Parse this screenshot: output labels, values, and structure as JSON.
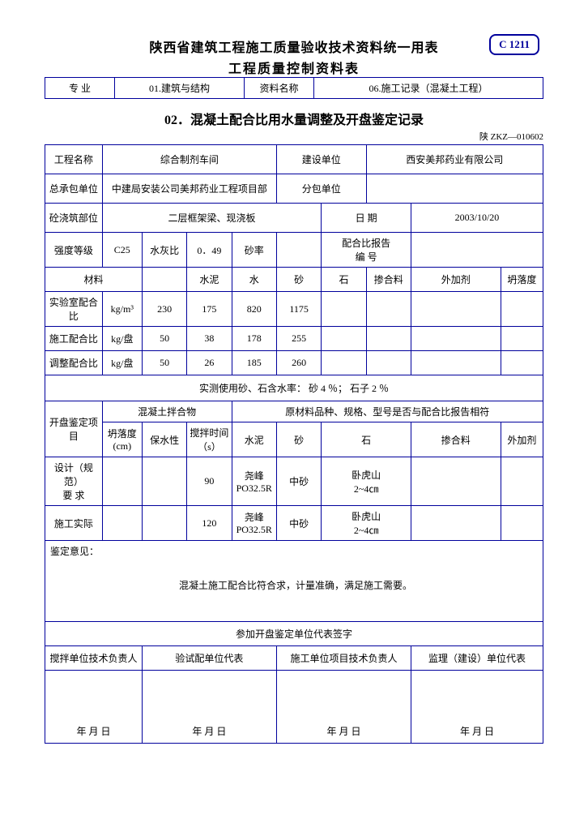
{
  "badge": "C 1211",
  "title1": "陕西省建筑工程施工质量验收技术资料统一用表",
  "title2": "工程质量控制资料表",
  "subtitle": "02．混凝土配合比用水量调整及开盘鉴定记录",
  "form_code": "陕 ZKZ—010602",
  "hdr": {
    "c1": "专    业",
    "v1": "01.建筑与结构",
    "c2": "资料名称",
    "v2": "06.施工记录（混凝土工程）"
  },
  "r1": {
    "c1": "工程名称",
    "v1": "综合制剂车间",
    "c2": "建设单位",
    "v2": "西安美邦药业有限公司"
  },
  "r2": {
    "c1": "总承包单位",
    "v1": "中建局安装公司美邦药业工程项目部",
    "c2": "分包单位",
    "v2": ""
  },
  "r3": {
    "c1": "砼浇筑部位",
    "v1": "二层框架梁、现浇板",
    "c2": "日    期",
    "v2": "2003/10/20"
  },
  "r4": {
    "c1": "强度等级",
    "v1": "C25",
    "c2": "水灰比",
    "v2": "0．49",
    "c3": "砂率",
    "v3": "",
    "c4": "配合比报告\n编    号",
    "v4": ""
  },
  "mat": {
    "head": [
      "材料",
      "",
      "水泥",
      "水",
      "砂",
      "石",
      "掺合料",
      "外加剂",
      "坍落度"
    ],
    "r1": [
      "实验室配合比",
      "kg/m³",
      "230",
      "175",
      "820",
      "1175",
      "",
      "",
      ""
    ],
    "r2": [
      "施工配合比",
      "kg/盘",
      "50",
      "38",
      "178",
      "255",
      "",
      "",
      ""
    ],
    "r3": [
      "调整配合比",
      "kg/盘",
      "50",
      "26",
      "185",
      "260",
      "",
      "",
      ""
    ]
  },
  "moisture": "实测使用砂、石含水率：            砂      4 ％； 石子          2    ％",
  "insp": {
    "head1": "开盘鉴定项目",
    "g1": "混凝土拌合物",
    "g2": "原材料品种、规格、型号是否与配合比报告相符",
    "sub1": [
      "坍落度\n(cm)",
      "保水性",
      "搅拌时间\n（s）"
    ],
    "sub2": [
      "水泥",
      "砂",
      "石",
      "掺合料",
      "外加剂"
    ],
    "r1l": "设计（规范）\n要  求",
    "r1": [
      "",
      "",
      "90",
      "尧峰\nPO32.5R",
      "中砂",
      "卧虎山\n2~4㎝",
      "",
      ""
    ],
    "r2l": "施工实际",
    "r2": [
      "",
      "",
      "120",
      "尧峰\nPO32.5R",
      "中砂",
      "卧虎山\n2~4㎝",
      "",
      ""
    ]
  },
  "opinion_label": "鉴定意见：",
  "opinion_text": "混凝土施工配合比符合求，计量准确，满足施工需要。",
  "sig_header": "参加开盘鉴定单位代表签字",
  "sig_cols": [
    "搅拌单位技术负责人",
    "验试配单位代表",
    "施工单位项目技术负责人",
    "监理（建设）单位代表"
  ],
  "date_text": "年  月  日"
}
